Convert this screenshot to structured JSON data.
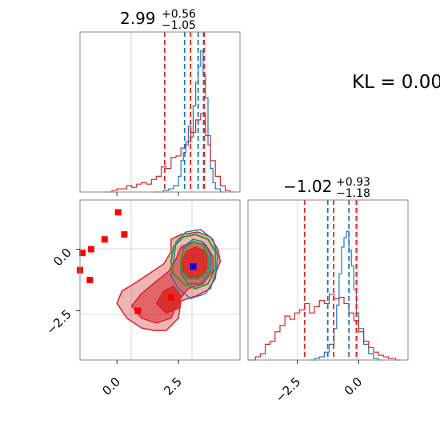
{
  "colors": {
    "blue": "#1f77b4",
    "red": "#d62728",
    "green": "#2ca02c",
    "point_red": "#ff0000",
    "point_blue": "#0000ff"
  },
  "kl_label": "KL = 0.00",
  "titles": {
    "param1": {
      "main": "2.99",
      "plus": "+0.56",
      "minus": "−1.05"
    },
    "param2": {
      "main": "−1.02",
      "plus": "+0.93",
      "minus": "−1.18"
    }
  },
  "chart_data": [
    {
      "type": "histogram",
      "panel": "top-left",
      "xlim": [
        -1.5,
        5.0
      ],
      "grid": true,
      "x_ticks": [
        0.0,
        2.5
      ],
      "series": [
        {
          "color": "blue",
          "bins": [
            [
              1.5,
              0
            ],
            [
              1.7,
              0
            ],
            [
              1.9,
              0.01
            ],
            [
              2.1,
              0.02
            ],
            [
              2.3,
              0.04
            ],
            [
              2.5,
              0.1
            ],
            [
              2.6,
              0.2
            ],
            [
              2.7,
              0.25
            ],
            [
              2.8,
              0.3
            ],
            [
              2.9,
              0.42
            ],
            [
              3.0,
              0.35
            ],
            [
              3.1,
              0.55
            ],
            [
              3.2,
              0.7
            ],
            [
              3.3,
              0.8
            ],
            [
              3.4,
              0.9
            ],
            [
              3.5,
              0.75
            ],
            [
              3.6,
              0.6
            ],
            [
              3.7,
              0.3
            ],
            [
              3.8,
              0.15
            ],
            [
              3.9,
              0.06
            ],
            [
              4.0,
              0.02
            ],
            [
              4.2,
              0.0
            ]
          ]
        },
        {
          "color": "red",
          "bins": [
            [
              -0.5,
              0.0
            ],
            [
              -0.2,
              0.01
            ],
            [
              0.0,
              0.02
            ],
            [
              0.2,
              0.02
            ],
            [
              0.4,
              0.04
            ],
            [
              0.6,
              0.03
            ],
            [
              0.8,
              0.05
            ],
            [
              1.0,
              0.06
            ],
            [
              1.2,
              0.05
            ],
            [
              1.4,
              0.08
            ],
            [
              1.6,
              0.1
            ],
            [
              1.8,
              0.16
            ],
            [
              2.0,
              0.15
            ],
            [
              2.2,
              0.22
            ],
            [
              2.4,
              0.23
            ],
            [
              2.6,
              0.28
            ],
            [
              2.8,
              0.32
            ],
            [
              3.0,
              0.38
            ],
            [
              3.2,
              0.46
            ],
            [
              3.4,
              0.5
            ],
            [
              3.6,
              0.36
            ],
            [
              3.8,
              0.2
            ],
            [
              4.0,
              0.1
            ],
            [
              4.2,
              0.04
            ],
            [
              4.4,
              0.01
            ],
            [
              4.6,
              0.0
            ]
          ]
        }
      ],
      "quantile_lines": [
        {
          "color": "blue",
          "x": [
            2.75,
            3.3,
            3.52
          ]
        },
        {
          "color": "red",
          "x": [
            1.94,
            2.99,
            3.55
          ]
        }
      ]
    },
    {
      "type": "histogram",
      "panel": "bottom-right",
      "xlim": [
        -4.5,
        2.0
      ],
      "grid": true,
      "x_ticks": [
        -2.5,
        0.0
      ],
      "series": [
        {
          "color": "blue",
          "bins": [
            [
              -2.0,
              0.0
            ],
            [
              -1.8,
              0.01
            ],
            [
              -1.6,
              0.02
            ],
            [
              -1.4,
              0.05
            ],
            [
              -1.2,
              0.1
            ],
            [
              -1.0,
              0.2
            ],
            [
              -0.9,
              0.35
            ],
            [
              -0.8,
              0.55
            ],
            [
              -0.7,
              0.72
            ],
            [
              -0.6,
              0.78
            ],
            [
              -0.5,
              0.82
            ],
            [
              -0.4,
              0.7
            ],
            [
              -0.3,
              0.6
            ],
            [
              -0.2,
              0.45
            ],
            [
              -0.1,
              0.3
            ],
            [
              0.0,
              0.2
            ],
            [
              0.2,
              0.1
            ],
            [
              0.4,
              0.04
            ],
            [
              0.6,
              0.01
            ],
            [
              0.8,
              0.0
            ]
          ]
        },
        {
          "color": "red",
          "bins": [
            [
              -4.5,
              0.0
            ],
            [
              -4.2,
              0.02
            ],
            [
              -4.0,
              0.04
            ],
            [
              -3.8,
              0.1
            ],
            [
              -3.6,
              0.12
            ],
            [
              -3.4,
              0.18
            ],
            [
              -3.2,
              0.22
            ],
            [
              -3.0,
              0.28
            ],
            [
              -2.8,
              0.26
            ],
            [
              -2.6,
              0.3
            ],
            [
              -2.4,
              0.32
            ],
            [
              -2.2,
              0.36
            ],
            [
              -2.0,
              0.3
            ],
            [
              -1.8,
              0.34
            ],
            [
              -1.6,
              0.38
            ],
            [
              -1.4,
              0.36
            ],
            [
              -1.2,
              0.42
            ],
            [
              -1.0,
              0.39
            ],
            [
              -0.8,
              0.4
            ],
            [
              -0.6,
              0.36
            ],
            [
              -0.4,
              0.3
            ],
            [
              -0.2,
              0.25
            ],
            [
              0.0,
              0.18
            ],
            [
              0.2,
              0.12
            ],
            [
              0.4,
              0.08
            ],
            [
              0.6,
              0.05
            ],
            [
              0.8,
              0.03
            ],
            [
              1.0,
              0.02
            ],
            [
              1.2,
              0.01
            ],
            [
              1.5,
              0.0
            ]
          ]
        }
      ],
      "quantile_lines": [
        {
          "color": "blue",
          "x": [
            -1.26,
            -0.4,
            -0.1
          ]
        },
        {
          "color": "red",
          "x": [
            -2.2,
            -1.02,
            -0.09
          ]
        }
      ]
    },
    {
      "type": "scatter",
      "panel": "bottom-left",
      "xlim": [
        -1.5,
        5.0
      ],
      "ylim": [
        -4.5,
        2.0
      ],
      "grid": true,
      "x_ticks": [
        0.0,
        2.5
      ],
      "y_ticks": [
        -2.5,
        0.0
      ],
      "points_red": [
        [
          0.05,
          1.5
        ],
        [
          0.3,
          0.6
        ],
        [
          -0.5,
          0.4
        ],
        [
          -1.05,
          0.0
        ],
        [
          -1.4,
          -0.15
        ],
        [
          -1.5,
          -0.85
        ],
        [
          -1.1,
          -1.25
        ],
        [
          0.85,
          -2.5
        ],
        [
          2.2,
          -1.95
        ]
      ],
      "points_blue": [
        [
          3.1,
          -0.7
        ]
      ],
      "contours": [
        {
          "color": "red",
          "label": "red-outer",
          "points": [
            [
              0.0,
              -2.2
            ],
            [
              0.2,
              -1.7
            ],
            [
              0.7,
              -1.4
            ],
            [
              1.3,
              -1.0
            ],
            [
              1.9,
              -0.6
            ],
            [
              2.2,
              -0.1
            ],
            [
              2.2,
              0.4
            ],
            [
              2.6,
              0.6
            ],
            [
              3.3,
              0.7
            ],
            [
              3.8,
              0.5
            ],
            [
              4.1,
              0.0
            ],
            [
              4.2,
              -0.5
            ],
            [
              4.0,
              -1.0
            ],
            [
              3.8,
              -1.6
            ],
            [
              3.2,
              -1.9
            ],
            [
              2.6,
              -2.1
            ],
            [
              2.5,
              -2.8
            ],
            [
              2.0,
              -3.3
            ],
            [
              1.5,
              -3.3
            ],
            [
              1.0,
              -3.2
            ],
            [
              0.4,
              -2.8
            ]
          ]
        },
        {
          "color": "red",
          "label": "red-mid",
          "points": [
            [
              0.6,
              -2.3
            ],
            [
              1.0,
              -1.8
            ],
            [
              1.6,
              -1.3
            ],
            [
              2.1,
              -0.9
            ],
            [
              2.4,
              -0.4
            ],
            [
              2.6,
              0.1
            ],
            [
              3.1,
              0.3
            ],
            [
              3.6,
              0.2
            ],
            [
              3.9,
              -0.3
            ],
            [
              3.9,
              -0.9
            ],
            [
              3.5,
              -1.4
            ],
            [
              2.9,
              -1.6
            ],
            [
              2.5,
              -2.1
            ],
            [
              2.2,
              -2.8
            ],
            [
              1.6,
              -3.0
            ],
            [
              1.0,
              -2.8
            ]
          ]
        },
        {
          "color": "red",
          "label": "red-inner",
          "points": [
            [
              1.6,
              -2.2
            ],
            [
              1.9,
              -1.7
            ],
            [
              2.3,
              -1.5
            ],
            [
              2.6,
              -1.9
            ],
            [
              2.5,
              -2.4
            ],
            [
              2.0,
              -2.6
            ]
          ]
        },
        {
          "color": "red",
          "label": "red-core",
          "points": [
            [
              2.6,
              -0.6
            ],
            [
              2.8,
              -0.1
            ],
            [
              3.2,
              0.1
            ],
            [
              3.6,
              -0.1
            ],
            [
              3.7,
              -0.6
            ],
            [
              3.5,
              -1.1
            ],
            [
              3.0,
              -1.2
            ],
            [
              2.7,
              -1.0
            ]
          ]
        },
        {
          "color": "blue",
          "label": "blue-outer",
          "points": [
            [
              2.3,
              -0.5
            ],
            [
              2.4,
              0.3
            ],
            [
              2.8,
              0.7
            ],
            [
              3.4,
              0.8
            ],
            [
              3.9,
              0.4
            ],
            [
              4.1,
              -0.3
            ],
            [
              4.0,
              -1.2
            ],
            [
              3.6,
              -1.8
            ],
            [
              3.0,
              -2.0
            ],
            [
              2.5,
              -1.6
            ],
            [
              2.2,
              -1.1
            ]
          ]
        },
        {
          "color": "blue",
          "label": "blue-inner",
          "points": [
            [
              2.6,
              -0.5
            ],
            [
              2.7,
              0.1
            ],
            [
              3.1,
              0.4
            ],
            [
              3.5,
              0.3
            ],
            [
              3.8,
              -0.2
            ],
            [
              3.8,
              -0.9
            ],
            [
              3.4,
              -1.4
            ],
            [
              2.9,
              -1.4
            ],
            [
              2.6,
              -1.0
            ]
          ]
        },
        {
          "color": "green",
          "label": "green-outer",
          "points": [
            [
              2.2,
              -0.5
            ],
            [
              2.3,
              0.1
            ],
            [
              2.7,
              0.5
            ],
            [
              3.2,
              0.6
            ],
            [
              3.7,
              0.4
            ],
            [
              4.0,
              -0.1
            ],
            [
              4.0,
              -0.8
            ],
            [
              3.7,
              -1.4
            ],
            [
              3.2,
              -1.6
            ],
            [
              2.7,
              -1.4
            ],
            [
              2.3,
              -1.0
            ]
          ]
        },
        {
          "color": "green",
          "label": "green-inner",
          "points": [
            [
              2.6,
              -0.5
            ],
            [
              2.7,
              0.0
            ],
            [
              3.1,
              0.3
            ],
            [
              3.5,
              0.2
            ],
            [
              3.7,
              -0.3
            ],
            [
              3.7,
              -0.9
            ],
            [
              3.3,
              -1.2
            ],
            [
              2.9,
              -1.2
            ],
            [
              2.6,
              -0.9
            ]
          ]
        }
      ]
    }
  ]
}
